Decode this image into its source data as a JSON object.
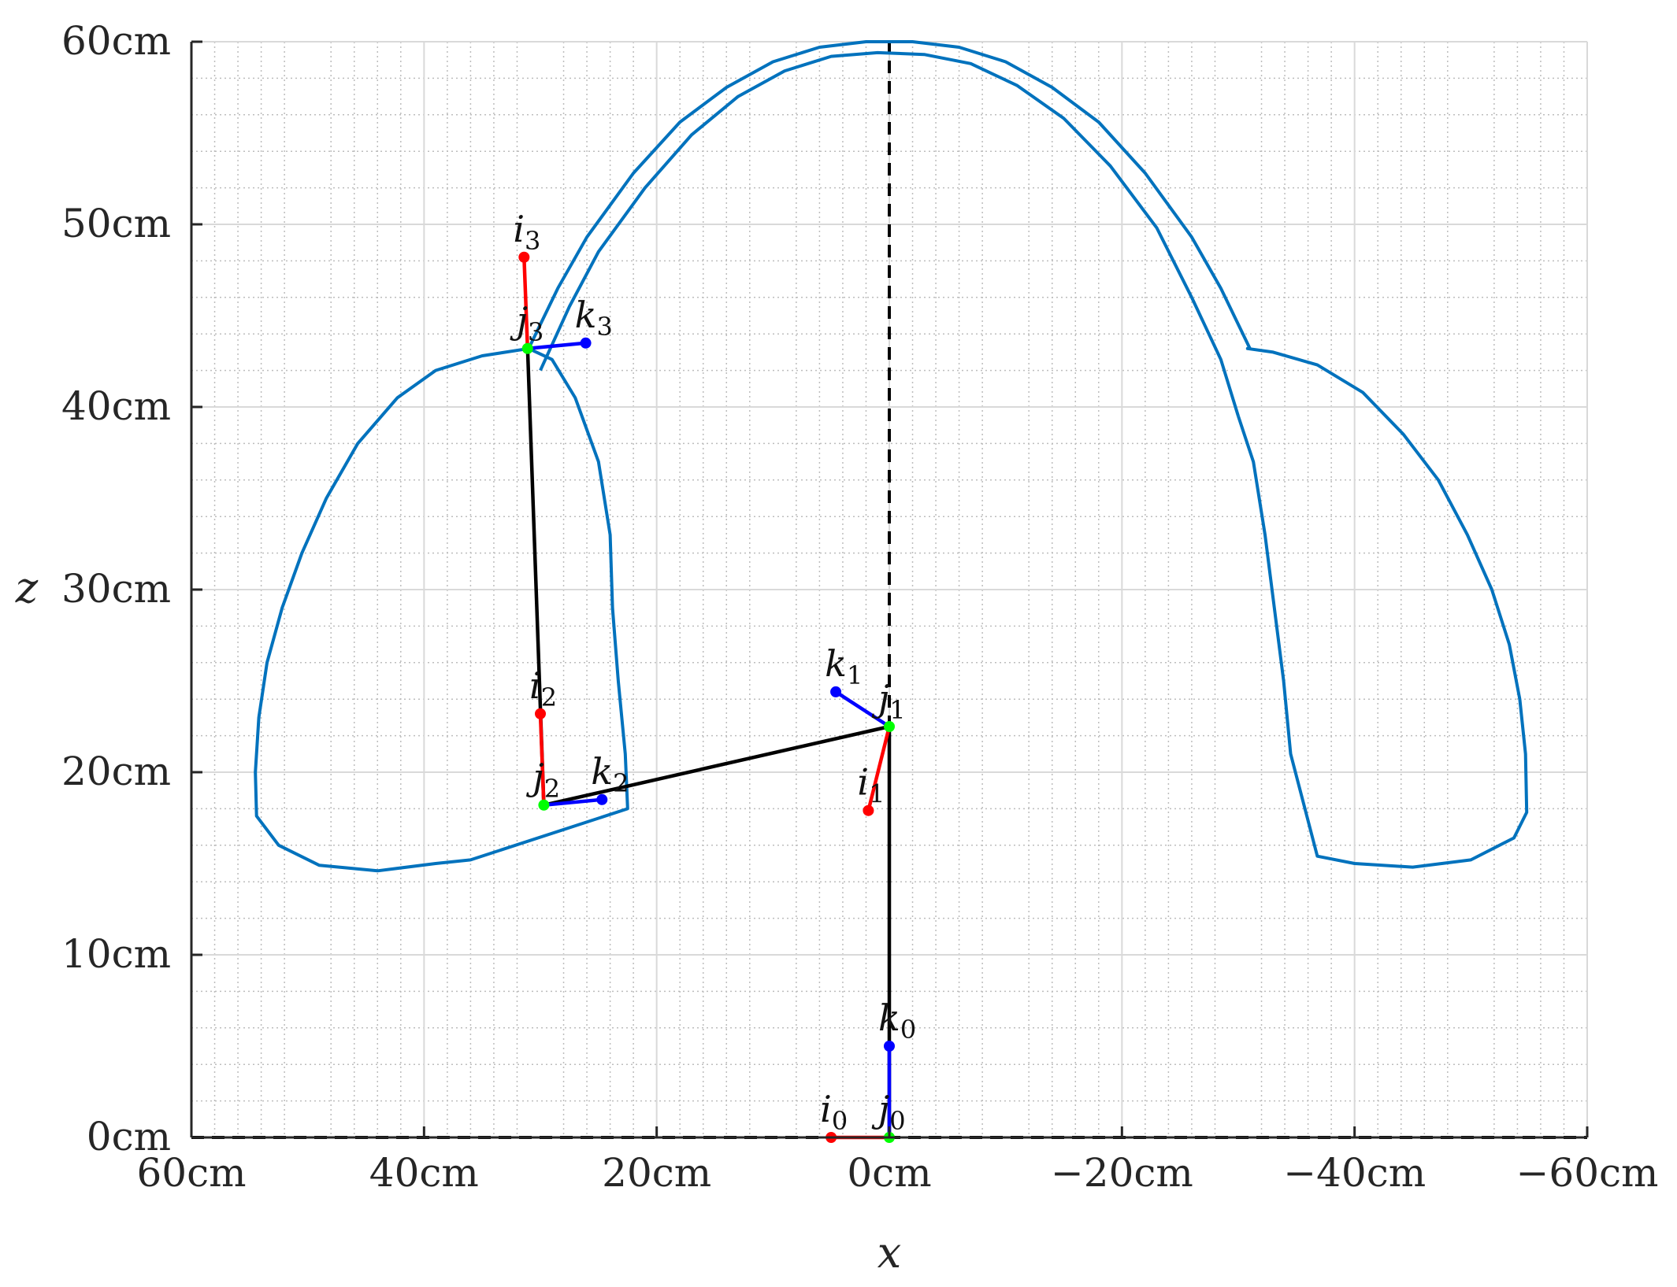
{
  "chart_data": {
    "type": "line",
    "xlabel": "x",
    "ylabel": "z",
    "xlim": [
      60,
      -60
    ],
    "ylim": [
      0,
      60
    ],
    "x_reversed": true,
    "grid": true,
    "minor_grid": true,
    "unit": "cm",
    "xticks": [
      60,
      40,
      20,
      0,
      -20,
      -40,
      -60
    ],
    "xtick_labels": [
      "60cm",
      "40cm",
      "20cm",
      "0cm",
      "−20cm",
      "−40cm",
      "−60cm"
    ],
    "yticks": [
      0,
      10,
      20,
      30,
      40,
      50,
      60
    ],
    "ytick_labels": [
      "0cm",
      "10cm",
      "20cm",
      "30cm",
      "40cm",
      "50cm",
      "60cm"
    ],
    "colors": {
      "outline": "#0072BD",
      "link": "#000000",
      "i_axis": "#FF0000",
      "j_axis": "#00FF00",
      "k_axis": "#0000FF",
      "grid_major": "#d9d9d9",
      "grid_minor": "#bdbdbd"
    },
    "reference_lines": [
      {
        "name": "z-axis",
        "style": "dashed",
        "points": [
          [
            0,
            0
          ],
          [
            0,
            60
          ]
        ]
      },
      {
        "name": "x-axis",
        "style": "dashed",
        "points": [
          [
            60,
            0
          ],
          [
            -60,
            0
          ]
        ]
      }
    ],
    "outline_series": [
      {
        "name": "outer-arc",
        "points": [
          [
            31,
            43.2
          ],
          [
            28.5,
            46.5
          ],
          [
            26,
            49.3
          ],
          [
            22,
            52.8
          ],
          [
            18,
            55.6
          ],
          [
            14,
            57.5
          ],
          [
            10,
            58.9
          ],
          [
            6,
            59.7
          ],
          [
            2,
            60
          ],
          [
            -2,
            60
          ],
          [
            -6,
            59.7
          ],
          [
            -10,
            58.9
          ],
          [
            -14,
            57.5
          ],
          [
            -18,
            55.6
          ],
          [
            -22,
            52.8
          ],
          [
            -26,
            49.3
          ],
          [
            -28.5,
            46.5
          ],
          [
            -31,
            43.2
          ]
        ]
      },
      {
        "name": "inner-arc",
        "points": [
          [
            30,
            42
          ],
          [
            27.5,
            45.5
          ],
          [
            25,
            48.5
          ],
          [
            21,
            52
          ],
          [
            17,
            54.9
          ],
          [
            13,
            57
          ],
          [
            9,
            58.4
          ],
          [
            5,
            59.2
          ],
          [
            1,
            59.4
          ],
          [
            -3,
            59.3
          ],
          [
            -7,
            58.8
          ],
          [
            -11,
            57.6
          ],
          [
            -15,
            55.8
          ],
          [
            -19,
            53.2
          ],
          [
            -23,
            49.8
          ],
          [
            -26,
            46
          ],
          [
            -28.5,
            42.6
          ],
          [
            -30,
            39.5
          ]
        ]
      },
      {
        "name": "left-flap",
        "points": [
          [
            31,
            43.2
          ],
          [
            29,
            42.6
          ],
          [
            27,
            40.5
          ],
          [
            25,
            37
          ],
          [
            24,
            33
          ],
          [
            23.8,
            29
          ],
          [
            23.3,
            25
          ],
          [
            22.7,
            21
          ],
          [
            22.5,
            18
          ],
          [
            36,
            15.2
          ],
          [
            39,
            15
          ],
          [
            44,
            14.6
          ],
          [
            49,
            14.9
          ],
          [
            52.5,
            16
          ],
          [
            54.4,
            17.6
          ],
          [
            54.5,
            20
          ],
          [
            54.2,
            23
          ],
          [
            53.5,
            26
          ],
          [
            52.2,
            29
          ],
          [
            50.5,
            32
          ],
          [
            48.4,
            35
          ],
          [
            45.7,
            38
          ],
          [
            42.3,
            40.5
          ],
          [
            39,
            42
          ],
          [
            35,
            42.8
          ],
          [
            31,
            43.2
          ]
        ]
      },
      {
        "name": "right-flap",
        "points": [
          [
            -30,
            39.5
          ],
          [
            -31.3,
            37
          ],
          [
            -32.3,
            33
          ],
          [
            -33.1,
            29
          ],
          [
            -33.9,
            25
          ],
          [
            -34.5,
            21
          ],
          [
            -36.8,
            15.4
          ],
          [
            -40,
            15
          ],
          [
            -45,
            14.8
          ],
          [
            -50,
            15.2
          ],
          [
            -53.7,
            16.4
          ],
          [
            -54.8,
            17.8
          ],
          [
            -54.7,
            21
          ],
          [
            -54.2,
            24
          ],
          [
            -53.3,
            27
          ],
          [
            -51.8,
            30
          ],
          [
            -49.7,
            33
          ],
          [
            -47.2,
            36
          ],
          [
            -44.2,
            38.5
          ],
          [
            -40.7,
            40.8
          ],
          [
            -36.8,
            42.3
          ],
          [
            -33,
            43
          ],
          [
            -30.8,
            43.2
          ],
          [
            -31,
            43.2
          ]
        ]
      }
    ],
    "links": [
      {
        "name": "link-0",
        "points": [
          [
            0,
            0
          ],
          [
            0,
            22.5
          ]
        ]
      },
      {
        "name": "link-1",
        "points": [
          [
            0,
            22.5
          ],
          [
            29.7,
            18.2
          ]
        ]
      },
      {
        "name": "link-2",
        "points": [
          [
            29.7,
            18.2
          ],
          [
            31.1,
            43.2
          ]
        ]
      }
    ],
    "frames": [
      {
        "label": "0",
        "origin": [
          0,
          0
        ],
        "i": [
          5,
          0
        ],
        "k": [
          0,
          5
        ]
      },
      {
        "label": "1",
        "origin": [
          0,
          22.5
        ],
        "i": [
          1.8,
          17.9
        ],
        "k": [
          4.6,
          24.4
        ]
      },
      {
        "label": "2",
        "origin": [
          29.7,
          18.2
        ],
        "i": [
          30.0,
          23.2
        ],
        "k": [
          24.7,
          18.5
        ]
      },
      {
        "label": "3",
        "origin": [
          31.1,
          43.2
        ],
        "i": [
          31.4,
          48.2
        ],
        "k": [
          26.1,
          43.5
        ]
      }
    ],
    "point_labels": [
      {
        "name": "i",
        "sub": "0",
        "pos": [
          5,
          0
        ]
      },
      {
        "name": "j",
        "sub": "0",
        "pos": [
          0,
          0
        ]
      },
      {
        "name": "k",
        "sub": "0",
        "pos": [
          0,
          5
        ]
      },
      {
        "name": "i",
        "sub": "1",
        "pos": [
          1.8,
          17.9
        ]
      },
      {
        "name": "j",
        "sub": "1",
        "pos": [
          0,
          22.5
        ]
      },
      {
        "name": "k",
        "sub": "1",
        "pos": [
          4.6,
          24.4
        ]
      },
      {
        "name": "i",
        "sub": "2",
        "pos": [
          30.0,
          23.2
        ]
      },
      {
        "name": "j",
        "sub": "2",
        "pos": [
          29.7,
          18.2
        ]
      },
      {
        "name": "k",
        "sub": "2",
        "pos": [
          24.7,
          18.5
        ]
      },
      {
        "name": "i",
        "sub": "3",
        "pos": [
          31.4,
          48.2
        ]
      },
      {
        "name": "j",
        "sub": "3",
        "pos": [
          31.1,
          43.2
        ]
      },
      {
        "name": "k",
        "sub": "3",
        "pos": [
          26.1,
          43.5
        ]
      }
    ]
  }
}
